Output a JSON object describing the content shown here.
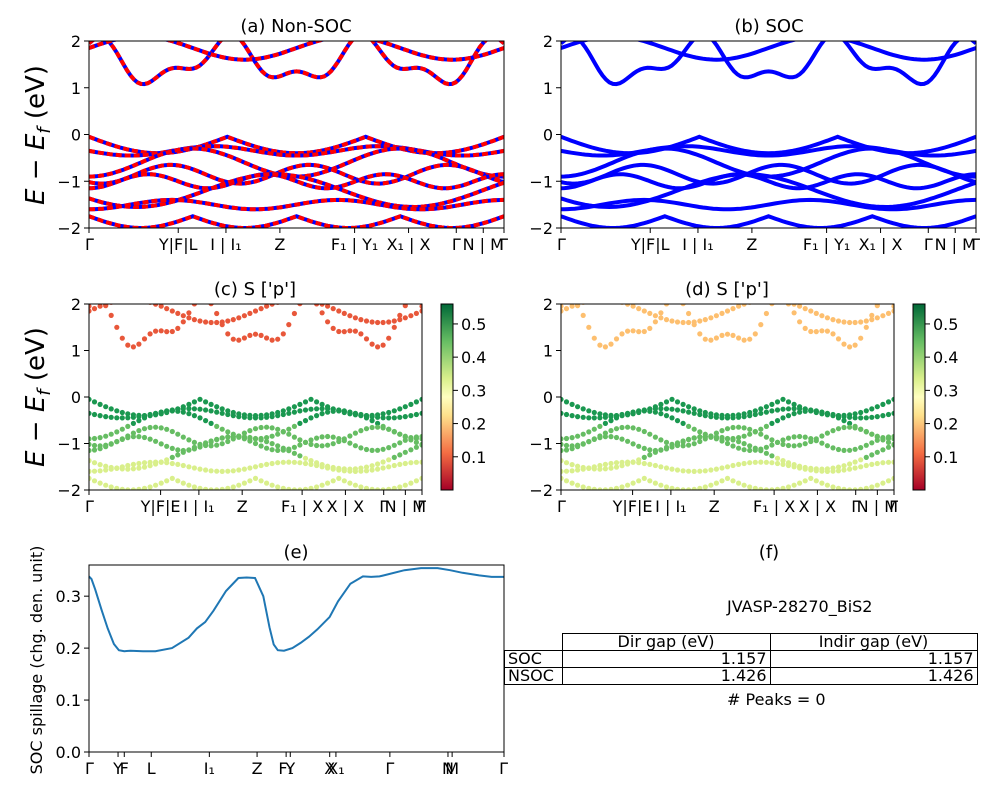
{
  "colors": {
    "nonsoc_a": "#ff0000",
    "nonsoc_b": "#0000ff",
    "soc": "#0000ff",
    "spillage_line": "#1f77b4"
  },
  "chart_data": [
    {
      "id": "a",
      "type": "scatter",
      "title": "(a) Non-SOC",
      "ylabel": "E − E_f (eV)",
      "ylim": [
        -2,
        2
      ],
      "yticks": [
        -2,
        -1,
        0,
        1,
        2
      ],
      "xtick_labels": [
        "Γ",
        "Y|F|L",
        "I | I₁",
        "Z",
        "F₁ | Y₁",
        "X₁ | X",
        "Γ",
        "N | M",
        "Γ"
      ],
      "color_series": [
        "red",
        "blue"
      ]
    },
    {
      "id": "b",
      "type": "scatter",
      "title": "(b) SOC",
      "ylim": [
        -2,
        2
      ],
      "yticks": [
        -2,
        -1,
        0,
        1,
        2
      ],
      "xtick_labels": [
        "Γ",
        "Y|F|L",
        "I | I₁",
        "Z",
        "F₁ | Y₁",
        "X₁ | X",
        "Γ",
        "N | M",
        "Γ"
      ],
      "color_series": [
        "blue"
      ]
    },
    {
      "id": "c",
      "type": "scatter",
      "title": "(c)  S ['p']",
      "ylabel": "E − E_f (eV)",
      "ylim": [
        -2,
        2
      ],
      "yticks": [
        -2,
        -1,
        0,
        1,
        2
      ],
      "xtick_labels": [
        "Γ",
        "Y|F|E",
        "I | I₁",
        "Z",
        "F₁ | X",
        "X | X",
        "Γ",
        "N | M",
        "Γ"
      ],
      "colorbar": {
        "colormap": "RdYlGn",
        "range": [
          0,
          0.56
        ],
        "ticks": [
          0.1,
          0.2,
          0.3,
          0.4,
          0.5
        ]
      }
    },
    {
      "id": "d",
      "type": "scatter",
      "title": "(d) S ['p']",
      "ylim": [
        -2,
        2
      ],
      "yticks": [
        -2,
        -1,
        0,
        1,
        2
      ],
      "xtick_labels": [
        "Γ",
        "Y|F|E",
        "I | I₁",
        "Z",
        "F₁ | X",
        "X | X",
        "Γ",
        "N | M",
        "Γ"
      ],
      "colorbar": {
        "colormap": "RdYlGn",
        "range": [
          0,
          0.56
        ],
        "ticks": [
          0.1,
          0.2,
          0.3,
          0.4,
          0.5
        ]
      }
    },
    {
      "id": "e",
      "type": "line",
      "title": "(e)",
      "ylabel": "SOC spillage (chg. den. unit)",
      "ylim": [
        0,
        0.36
      ],
      "yticks": [
        0.0,
        0.1,
        0.2,
        0.3
      ],
      "xtick_labels": [
        "Γ",
        "Y",
        "F",
        "L",
        "I₁",
        "Z",
        "F₁",
        "Y",
        "X",
        "X₁",
        "Γ",
        "N",
        "M",
        "Γ"
      ],
      "x": [
        0,
        0.006,
        0.015,
        0.03,
        0.045,
        0.06,
        0.072,
        0.085,
        0.1,
        0.13,
        0.16,
        0.2,
        0.24,
        0.26,
        0.28,
        0.3,
        0.33,
        0.36,
        0.38,
        0.4,
        0.42,
        0.435,
        0.445,
        0.455,
        0.47,
        0.49,
        0.51,
        0.53,
        0.55,
        0.58,
        0.6,
        0.63,
        0.66,
        0.68,
        0.7,
        0.72,
        0.76,
        0.8,
        0.84,
        0.87,
        0.9,
        0.94,
        0.97,
        1.0
      ],
      "y": [
        0.338,
        0.333,
        0.313,
        0.274,
        0.238,
        0.208,
        0.196,
        0.194,
        0.195,
        0.194,
        0.194,
        0.2,
        0.22,
        0.238,
        0.25,
        0.272,
        0.31,
        0.335,
        0.336,
        0.335,
        0.3,
        0.24,
        0.207,
        0.196,
        0.195,
        0.2,
        0.21,
        0.222,
        0.236,
        0.26,
        0.29,
        0.324,
        0.338,
        0.337,
        0.338,
        0.342,
        0.35,
        0.354,
        0.354,
        0.35,
        0.345,
        0.34,
        0.337,
        0.337
      ]
    }
  ],
  "panel_f": {
    "title": "(f)",
    "material": "JVASP-28270_BiS2",
    "table": {
      "headers": [
        "Dir gap (eV)",
        "Indir gap (eV)"
      ],
      "rows": [
        {
          "label": "SOC",
          "dir": "1.157",
          "indir": "1.157"
        },
        {
          "label": "NSOC",
          "dir": "1.426",
          "indir": "1.426"
        }
      ]
    },
    "peaks": "# Peaks = 0"
  }
}
